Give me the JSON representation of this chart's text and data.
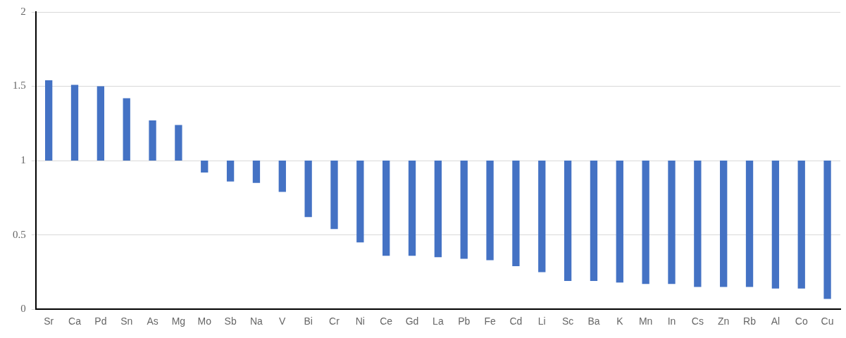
{
  "chart_data": {
    "type": "bar",
    "categories": [
      "Sr",
      "Ca",
      "Pd",
      "Sn",
      "As",
      "Mg",
      "Mo",
      "Sb",
      "Na",
      "V",
      "Bi",
      "Cr",
      "Ni",
      "Ce",
      "Gd",
      "La",
      "Pb",
      "Fe",
      "Cd",
      "Li",
      "Sc",
      "Ba",
      "K",
      "Mn",
      "In",
      "Cs",
      "Zn",
      "Rb",
      "Al",
      "Co",
      "Cu"
    ],
    "base": [
      1,
      1,
      1,
      1,
      1,
      1,
      1,
      1,
      1,
      1,
      1,
      1,
      1,
      1,
      1,
      1,
      1,
      1,
      1,
      1,
      1,
      1,
      1,
      1,
      1,
      1,
      1,
      1,
      1,
      1,
      1
    ],
    "values": [
      0.54,
      0.51,
      0.5,
      0.42,
      0.27,
      0.24,
      -0.08,
      -0.14,
      -0.15,
      -0.21,
      -0.38,
      -0.46,
      -0.55,
      -0.64,
      -0.64,
      -0.65,
      -0.66,
      -0.67,
      -0.71,
      -0.75,
      -0.81,
      -0.81,
      -0.82,
      -0.83,
      -0.83,
      -0.85,
      -0.85,
      -0.85,
      -0.86,
      -0.86,
      -0.93
    ],
    "color": "#4472c4",
    "ylim": [
      0,
      2
    ],
    "yticks": [
      0,
      0.5,
      1,
      1.5,
      2
    ],
    "grid": "y"
  }
}
